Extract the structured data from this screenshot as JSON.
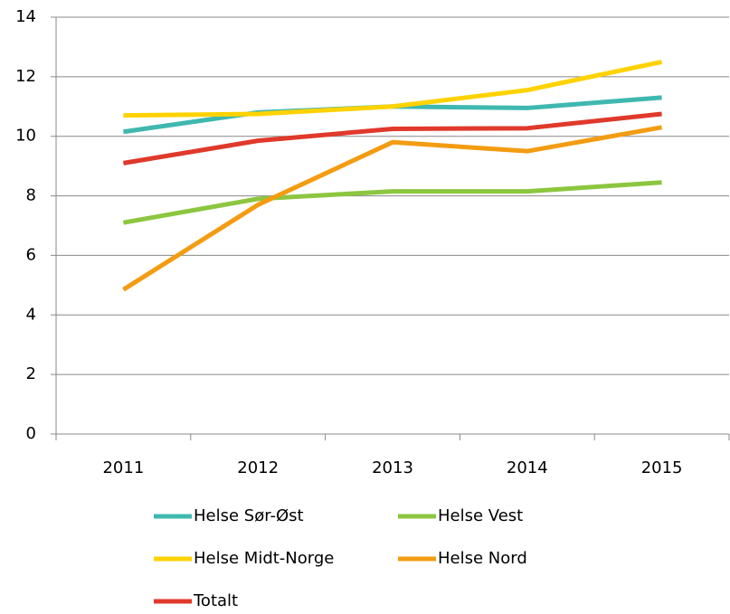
{
  "chart_data": {
    "type": "line",
    "categories": [
      "2011",
      "2012",
      "2013",
      "2014",
      "2015"
    ],
    "series": [
      {
        "name": "Helse Sør-Øst",
        "color": "#3fb8b0",
        "values": [
          10.15,
          10.8,
          11.0,
          10.95,
          11.3
        ]
      },
      {
        "name": "Helse Vest",
        "color": "#8cc63f",
        "values": [
          7.1,
          7.9,
          8.15,
          8.15,
          8.45
        ]
      },
      {
        "name": "Helse Midt-Norge",
        "color": "#ffd200",
        "values": [
          10.7,
          10.75,
          11.0,
          11.55,
          12.5
        ]
      },
      {
        "name": "Helse Nord",
        "color": "#f39c12",
        "values": [
          4.85,
          7.7,
          9.8,
          9.5,
          10.3
        ]
      },
      {
        "name": "Totalt",
        "color": "#e0392b",
        "values": [
          9.1,
          9.85,
          10.25,
          10.27,
          10.75
        ]
      }
    ],
    "ylim": [
      0,
      14
    ],
    "yticks": [
      0,
      2,
      4,
      6,
      8,
      10,
      12,
      14
    ],
    "grid": true,
    "legend": "bottom"
  }
}
